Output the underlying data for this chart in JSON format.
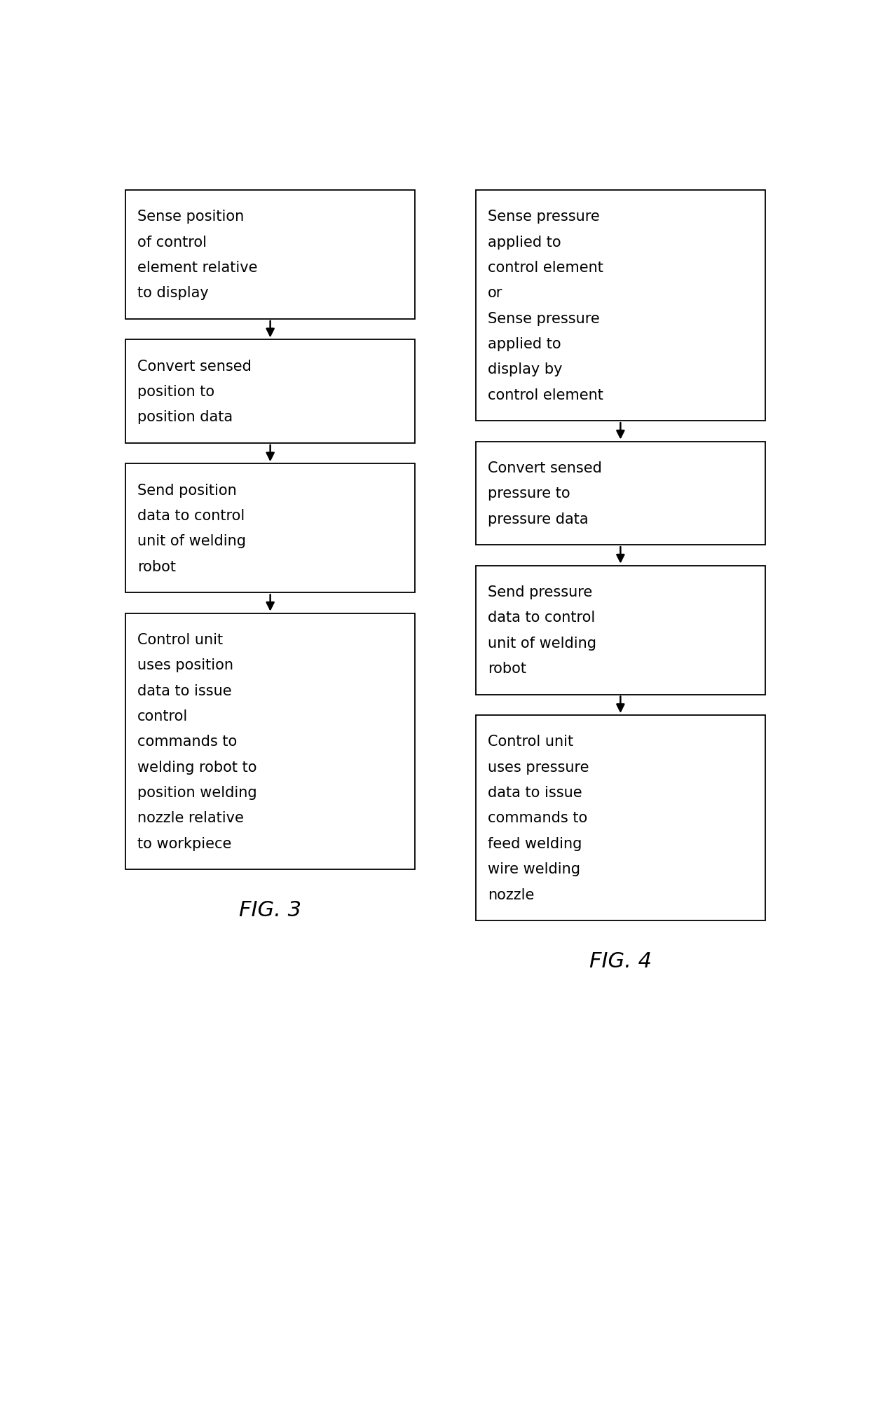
{
  "fig3_boxes": [
    "Sense position\nof control\nelement relative\nto display",
    "Convert sensed\nposition to\nposition data",
    "Send position\ndata to control\nunit of welding\nrobot",
    "Control unit\nuses position\ndata to issue\ncontrol\ncommands to\nwelding robot to\nposition welding\nnozzle relative\nto workpiece"
  ],
  "fig4_boxes": [
    "Sense pressure\napplied to\ncontrol element\nor\nSense pressure\napplied to\ndisplay by\ncontrol element",
    "Convert sensed\npressure to\npressure data",
    "Send pressure\ndata to control\nunit of welding\nrobot",
    "Control unit\nuses pressure\ndata to issue\ncommands to\nfeed welding\nwire welding\nnozzle"
  ],
  "fig3_label": "FIG. 3",
  "fig4_label": "FIG. 4",
  "bg_color": "#ffffff",
  "box_edge_color": "#000000",
  "text_color": "#000000",
  "arrow_color": "#000000",
  "font_size": 15,
  "label_font_size": 22,
  "fig3_text_align": [
    "left",
    "left",
    "left",
    "left"
  ],
  "fig4_text_align": [
    "center",
    "left",
    "left",
    "left"
  ]
}
